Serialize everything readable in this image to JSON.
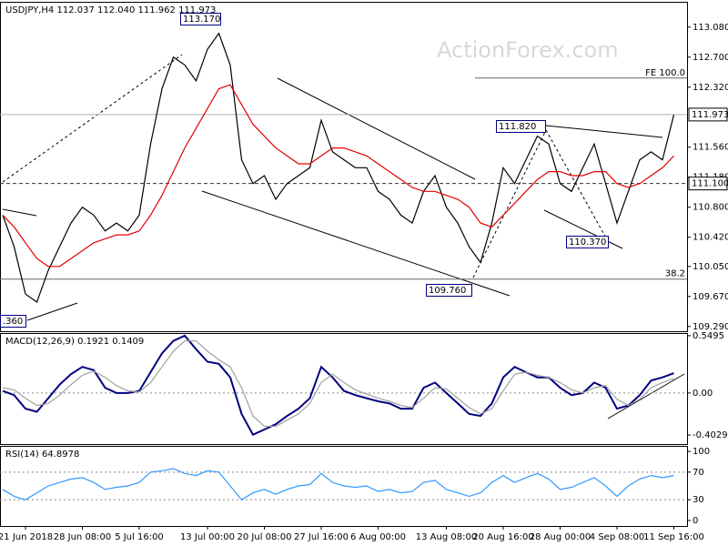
{
  "chart_data": [
    {
      "type": "line",
      "title": "USDJPY,H4  112.037 112.040 111.962 111.973",
      "watermark": "ActionForex.com",
      "series": [
        {
          "name": "USDJPY",
          "color": "#000000",
          "values": [
            110.7,
            110.3,
            109.7,
            109.6,
            110.0,
            110.3,
            110.6,
            110.8,
            110.7,
            110.5,
            110.6,
            110.5,
            110.7,
            111.6,
            112.3,
            112.7,
            112.6,
            112.4,
            112.8,
            113.0,
            112.6,
            111.4,
            111.1,
            111.2,
            110.9,
            111.1,
            111.2,
            111.3,
            111.9,
            111.5,
            111.4,
            111.3,
            111.3,
            111.0,
            110.9,
            110.7,
            110.6,
            111.0,
            111.2,
            110.8,
            110.6,
            110.3,
            110.1,
            110.6,
            111.3,
            111.1,
            111.4,
            111.7,
            111.6,
            111.1,
            111.0,
            111.3,
            111.6,
            111.1,
            110.6,
            111.0,
            111.4,
            111.5,
            111.4,
            111.97
          ]
        },
        {
          "name": "MA",
          "color": "#e00000",
          "values": [
            110.7,
            110.55,
            110.35,
            110.15,
            110.05,
            110.05,
            110.15,
            110.25,
            110.35,
            110.4,
            110.45,
            110.45,
            110.5,
            110.7,
            110.95,
            111.25,
            111.55,
            111.8,
            112.05,
            112.3,
            112.35,
            112.1,
            111.85,
            111.7,
            111.55,
            111.45,
            111.35,
            111.35,
            111.45,
            111.55,
            111.55,
            111.5,
            111.45,
            111.35,
            111.25,
            111.15,
            111.05,
            111.0,
            111.0,
            110.95,
            110.9,
            110.8,
            110.6,
            110.55,
            110.7,
            110.85,
            111.0,
            111.15,
            111.25,
            111.25,
            111.2,
            111.2,
            111.25,
            111.25,
            111.1,
            111.05,
            111.1,
            111.2,
            111.3,
            111.45
          ]
        }
      ],
      "ylim": [
        109.23,
        113.4
      ],
      "yticks": [
        {
          "value": 109.29,
          "label": "109.290"
        },
        {
          "value": 109.67,
          "label": "109.670"
        },
        {
          "value": 110.05,
          "label": "110.050"
        },
        {
          "value": 110.42,
          "label": "110.420"
        },
        {
          "value": 110.8,
          "label": "110.800"
        },
        {
          "value": 111.18,
          "label": "111.180"
        },
        {
          "value": 111.56,
          "label": "111.560"
        },
        {
          "value": 112.32,
          "label": "112.320"
        },
        {
          "value": 112.7,
          "label": "112.700"
        },
        {
          "value": 113.08,
          "label": "113.080"
        }
      ],
      "levels": [
        {
          "value": 111.973,
          "label": "111.973",
          "style": "box",
          "color": "#b0b0b0",
          "dash": false
        },
        {
          "value": 111.1,
          "label": "111.100",
          "style": "box",
          "color": "#333333",
          "dash": true
        },
        {
          "value": 112.435,
          "label": "FE 100.0",
          "style": "text",
          "color": "#666666",
          "dash": false
        },
        {
          "value": 109.89,
          "label": "38.2",
          "style": "text",
          "color": "#666666",
          "dash": false
        }
      ],
      "annotations": [
        "113.170",
        "111.820",
        "110.370",
        "109.760",
        ".360"
      ]
    },
    {
      "type": "line",
      "title": "MACD(12,26,9) 0.1921 0.1409",
      "series": [
        {
          "name": "MACD",
          "color": "#000080",
          "values": [
            0.02,
            -0.02,
            -0.15,
            -0.18,
            -0.05,
            0.08,
            0.18,
            0.25,
            0.22,
            0.05,
            0.0,
            0.0,
            0.02,
            0.2,
            0.38,
            0.5,
            0.55,
            0.42,
            0.3,
            0.28,
            0.15,
            -0.2,
            -0.4,
            -0.35,
            -0.3,
            -0.22,
            -0.15,
            -0.05,
            0.25,
            0.15,
            0.02,
            -0.02,
            -0.05,
            -0.08,
            -0.1,
            -0.15,
            -0.15,
            0.05,
            0.1,
            0.0,
            -0.1,
            -0.2,
            -0.22,
            -0.1,
            0.15,
            0.25,
            0.2,
            0.15,
            0.15,
            0.05,
            -0.02,
            0.0,
            0.1,
            0.05,
            -0.15,
            -0.12,
            -0.02,
            0.12,
            0.15,
            0.19
          ]
        },
        {
          "name": "Signal",
          "color": "#a0a0a0",
          "values": [
            0.05,
            0.03,
            -0.05,
            -0.12,
            -0.1,
            -0.02,
            0.08,
            0.17,
            0.21,
            0.15,
            0.07,
            0.02,
            0.01,
            0.1,
            0.25,
            0.4,
            0.5,
            0.5,
            0.4,
            0.32,
            0.25,
            0.05,
            -0.22,
            -0.32,
            -0.32,
            -0.26,
            -0.2,
            -0.1,
            0.1,
            0.18,
            0.1,
            0.03,
            -0.01,
            -0.05,
            -0.08,
            -0.12,
            -0.14,
            -0.05,
            0.05,
            0.04,
            -0.05,
            -0.14,
            -0.2,
            -0.15,
            0.02,
            0.18,
            0.2,
            0.17,
            0.15,
            0.1,
            0.03,
            0.0,
            0.05,
            0.07,
            -0.06,
            -0.12,
            -0.06,
            0.05,
            0.1,
            0.14
          ]
        }
      ],
      "ylim": [
        -0.49,
        0.575
      ],
      "yticks": [
        -0.4029,
        {
          "value": 0,
          "label": "0.00"
        },
        0.5495
      ],
      "levels": [
        0
      ]
    },
    {
      "type": "line",
      "title": "RSI(14) 64.8978",
      "categories": [
        null,
        null,
        "21 Jun 2018",
        null,
        null,
        null,
        null,
        "28 Jun 08:00",
        null,
        null,
        null,
        null,
        "5 Jul 16:00",
        null,
        null,
        null,
        null,
        null,
        "13 Jul 00:00",
        null,
        null,
        null,
        null,
        "20 Jul 08:00",
        null,
        null,
        null,
        null,
        "27 Jul 16:00",
        null,
        null,
        null,
        null,
        "6 Aug 00:00",
        null,
        null,
        null,
        null,
        null,
        "13 Aug 08:00",
        null,
        null,
        null,
        null,
        "20 Aug 16:00",
        null,
        null,
        null,
        null,
        "28 Aug 00:00",
        null,
        null,
        null,
        null,
        "4 Sep 08:00",
        null,
        null,
        null,
        null,
        "11 Sep 16:00"
      ],
      "series": [
        {
          "name": "RSI",
          "color": "#3399ff",
          "values": [
            45,
            35,
            30,
            40,
            50,
            55,
            60,
            62,
            55,
            45,
            48,
            50,
            55,
            70,
            72,
            75,
            68,
            65,
            72,
            70,
            50,
            30,
            40,
            45,
            38,
            45,
            50,
            52,
            68,
            55,
            50,
            48,
            50,
            42,
            45,
            40,
            42,
            55,
            58,
            45,
            40,
            35,
            40,
            55,
            65,
            55,
            62,
            68,
            60,
            45,
            48,
            55,
            62,
            50,
            35,
            50,
            60,
            65,
            62,
            65
          ]
        }
      ],
      "ylim": [
        -8,
        108
      ],
      "yticks": [
        0,
        30,
        70,
        100
      ],
      "levels": [
        70,
        30
      ]
    }
  ]
}
